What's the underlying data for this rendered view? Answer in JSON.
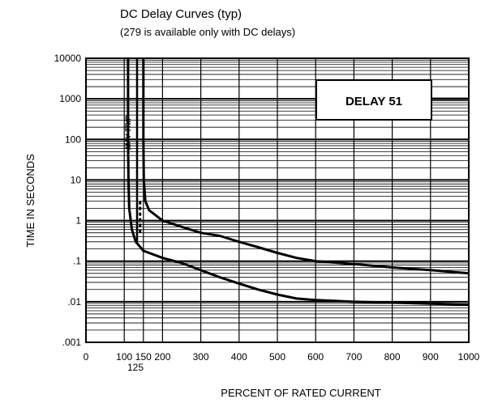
{
  "chart_data": {
    "type": "line",
    "title": "DC Delay Curves (typ)",
    "subtitle": "(279 is available only with DC delays)",
    "xlabel": "PERCENT OF RATED CURRENT",
    "ylabel": "TIME IN SECONDS",
    "xlim": [
      0,
      1000
    ],
    "ylim": [
      0.001,
      10000
    ],
    "yscale": "log",
    "grid": true,
    "x_ticks": [
      {
        "value": 0,
        "label": "0"
      },
      {
        "value": 100,
        "label": "100"
      },
      {
        "value": 150,
        "label": "150"
      },
      {
        "value": 200,
        "label": "200"
      },
      {
        "value": 300,
        "label": "300"
      },
      {
        "value": 400,
        "label": "400"
      },
      {
        "value": 500,
        "label": "500"
      },
      {
        "value": 600,
        "label": "600"
      },
      {
        "value": 700,
        "label": "700"
      },
      {
        "value": 800,
        "label": "800"
      },
      {
        "value": 900,
        "label": "900"
      },
      {
        "value": 1000,
        "label": "1000"
      }
    ],
    "x_tick_125": {
      "value": 125,
      "label": "125"
    },
    "y_ticks": [
      {
        "value": 10000,
        "label": "10000"
      },
      {
        "value": 1000,
        "label": "1000"
      },
      {
        "value": 100,
        "label": "100"
      },
      {
        "value": 10,
        "label": "10"
      },
      {
        "value": 1,
        "label": "1"
      },
      {
        "value": 0.1,
        "label": ".1"
      },
      {
        "value": 0.01,
        "label": ".01"
      },
      {
        "value": 0.001,
        "label": ".001"
      }
    ],
    "annotations": {
      "box_label": "DELAY 51",
      "may_trip": "MAY TRIP"
    },
    "series": [
      {
        "points": [
          [
            150,
            10000
          ],
          [
            150,
            100
          ],
          [
            151,
            10
          ],
          [
            155,
            3
          ],
          [
            165,
            1.8
          ],
          [
            200,
            1.0
          ],
          [
            250,
            0.7
          ],
          [
            300,
            0.5
          ],
          [
            350,
            0.42
          ],
          [
            400,
            0.3
          ],
          [
            450,
            0.22
          ],
          [
            500,
            0.16
          ],
          [
            550,
            0.12
          ],
          [
            600,
            0.1
          ],
          [
            700,
            0.085
          ],
          [
            800,
            0.07
          ],
          [
            900,
            0.06
          ],
          [
            1000,
            0.05
          ]
        ]
      },
      {
        "points": [
          [
            110,
            10000
          ],
          [
            110,
            100
          ],
          [
            111,
            10
          ],
          [
            113,
            2
          ],
          [
            120,
            0.6
          ],
          [
            130,
            0.3
          ],
          [
            150,
            0.18
          ],
          [
            200,
            0.12
          ],
          [
            250,
            0.09
          ],
          [
            300,
            0.06
          ],
          [
            350,
            0.04
          ],
          [
            400,
            0.028
          ],
          [
            450,
            0.02
          ],
          [
            500,
            0.015
          ],
          [
            550,
            0.012
          ],
          [
            600,
            0.011
          ],
          [
            700,
            0.01
          ],
          [
            800,
            0.0095
          ],
          [
            900,
            0.009
          ],
          [
            1000,
            0.0085
          ]
        ]
      },
      {
        "points": [
          [
            880,
            1000
          ],
          [
            1000,
            1000
          ]
        ]
      }
    ],
    "may_trip_line": {
      "x": 125,
      "y_from": 0.3,
      "y_to": 10000
    },
    "may_trip_dashed": {
      "x": 135,
      "y_from": 0.5,
      "y_to": 3
    }
  }
}
